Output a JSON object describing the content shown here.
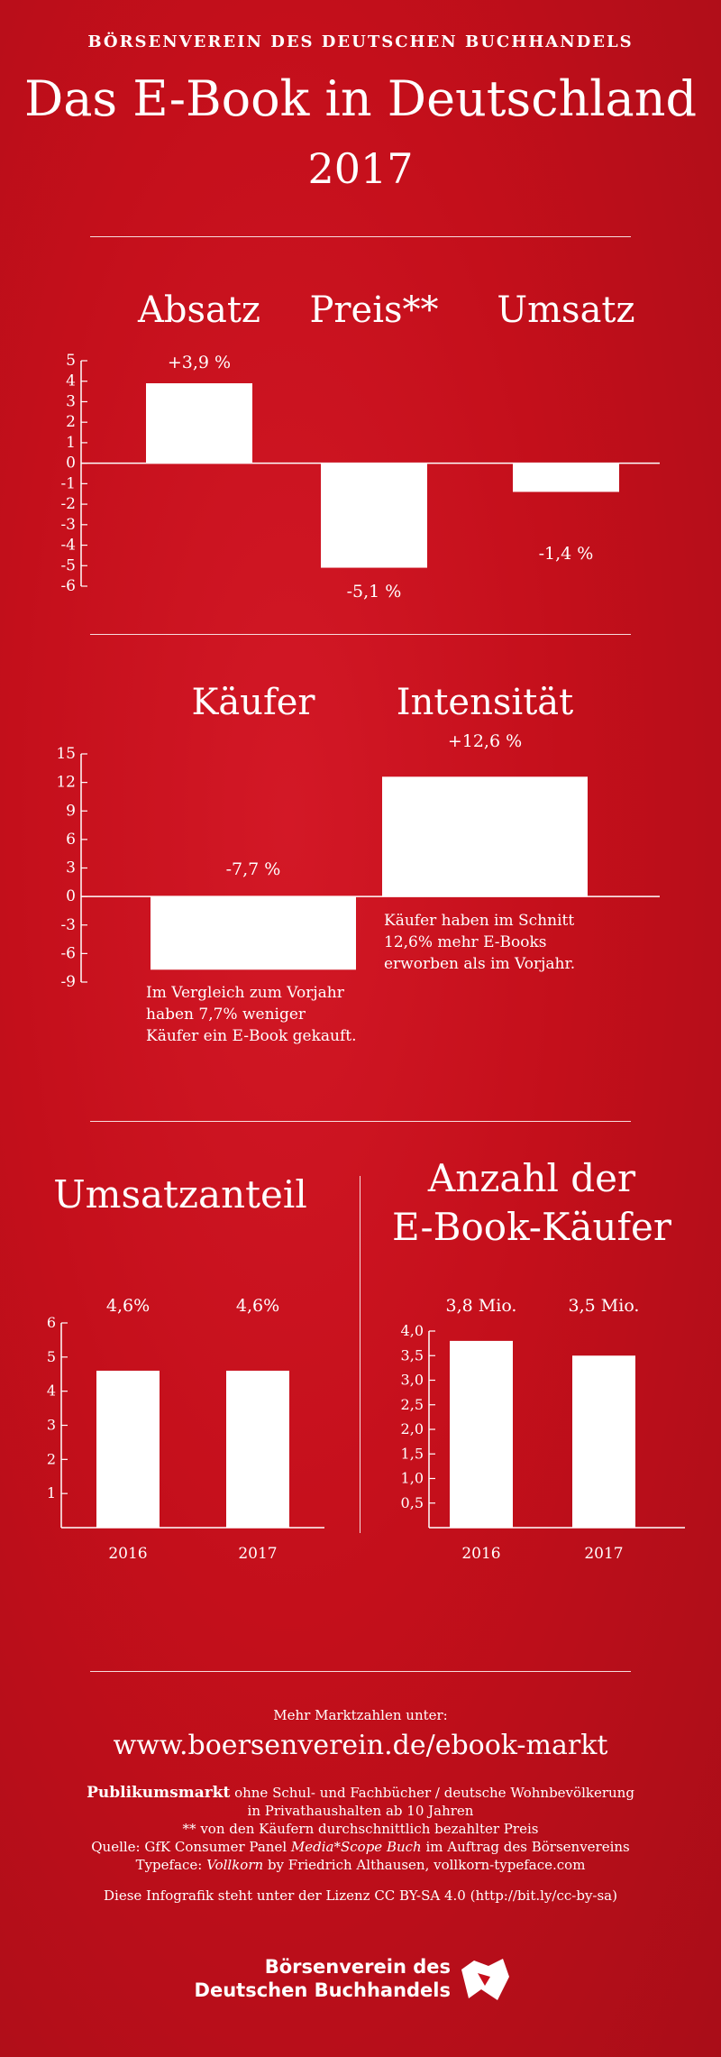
{
  "header": {
    "org": "BÖRSENVEREIN DES DEUTSCHEN BUCHHANDELS",
    "title": "Das E-Book in Deutschland",
    "year": "2017"
  },
  "chart_data": [
    {
      "type": "bar",
      "categories": [
        "Absatz",
        "Preis**",
        "Umsatz"
      ],
      "values": [
        3.9,
        -5.1,
        -1.4
      ],
      "labels": [
        "+3,9 %",
        "-5,1 %",
        "-1,4 %"
      ],
      "ylim": [
        -6,
        5
      ],
      "yticks": [
        "5",
        "4",
        "3",
        "2",
        "1",
        "0",
        "-1",
        "-2",
        "-3",
        "-4",
        "-5",
        "-6"
      ]
    },
    {
      "type": "bar",
      "categories": [
        "Käufer",
        "Intensität"
      ],
      "values": [
        -7.7,
        12.6
      ],
      "labels": [
        "-7,7 %",
        "+12,6 %"
      ],
      "ylim": [
        -9,
        15
      ],
      "yticks": [
        "15",
        "12",
        "9",
        "6",
        "3",
        "0",
        "-3",
        "-6",
        "-9"
      ],
      "notes": [
        [
          "Im Vergleich zum Vorjahr",
          "haben 7,7% weniger",
          "Käufer ein E-Book gekauft."
        ],
        [
          "Käufer haben im Schnitt",
          "12,6% mehr E-Books",
          "erworben als im Vorjahr."
        ]
      ]
    },
    {
      "type": "bar",
      "title": "Umsatzanteil",
      "categories": [
        "2016",
        "2017"
      ],
      "values": [
        4.6,
        4.6
      ],
      "labels": [
        "4,6%",
        "4,6%"
      ],
      "ylim": [
        0,
        6
      ],
      "yticks": [
        "6",
        "5",
        "4",
        "3",
        "2",
        "1"
      ]
    },
    {
      "type": "bar",
      "title": [
        "Anzahl der",
        "E-Book-Käufer"
      ],
      "categories": [
        "2016",
        "2017"
      ],
      "values": [
        3.8,
        3.5
      ],
      "labels": [
        "3,8 Mio.",
        "3,5 Mio."
      ],
      "ylim": [
        0,
        4
      ],
      "yticks": [
        "4,0",
        "3,5",
        "3,0",
        "2,5",
        "2,0",
        "1,5",
        "1,0",
        "0,5"
      ]
    }
  ],
  "footer": {
    "more": "Mehr Marktzahlen unter:",
    "url": "www.boersenverein.de/ebook-markt",
    "line1_bold": "Publikumsmarkt",
    "line1_rest": " ohne Schul- und Fachbücher / deutsche Wohnbevölkerung",
    "line2": "in Privathaushalten ab 10 Jahren",
    "line3": "** von den Käufern durchschnittlich bezahlter Preis",
    "line4_a": "Quelle: GfK Consumer Panel ",
    "line4_i": "Media*Scope Buch",
    "line4_b": " im Auftrag des Börsenvereins",
    "line5_a": "Typeface: ",
    "line5_i": "Vollkorn",
    "line5_b": " by Friedrich Althausen, vollkorn-typeface.com",
    "license": "Diese Infografik steht unter der Lizenz CC BY-SA 4.0 (http://bit.ly/cc-by-sa)",
    "logo_line1": "Börsenverein des",
    "logo_line2": "Deutschen Buchhandels"
  },
  "colors": {
    "background": "#c8101c",
    "bars": "#ffffff"
  }
}
